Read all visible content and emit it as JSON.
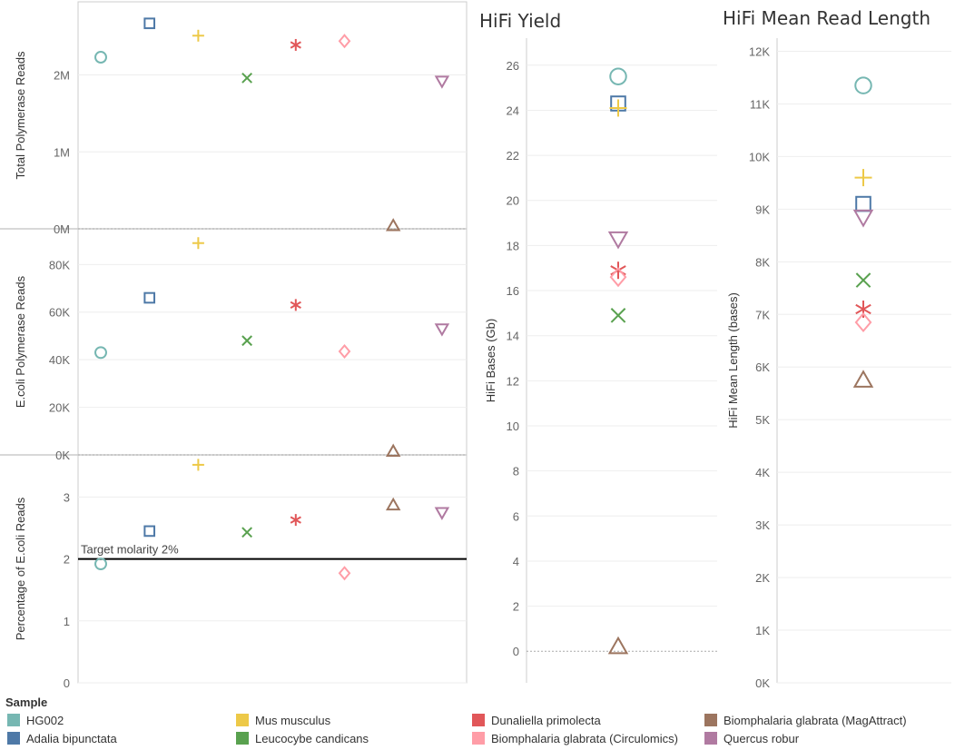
{
  "chart_data": [
    {
      "type": "scatter",
      "id": "total",
      "ylabel": "Total Polymerase Reads",
      "ylim": [
        0,
        2950000
      ],
      "ticks": [
        0,
        1000000,
        2000000
      ],
      "tick_labels": [
        "0M",
        "1M",
        "2M"
      ],
      "points": [
        {
          "sample": "HG002",
          "y": 2230000
        },
        {
          "sample": "Adalia bipunctata",
          "y": 2670000
        },
        {
          "sample": "Mus musculus",
          "y": 2510000
        },
        {
          "sample": "Leucocybe candicans",
          "y": 1960000
        },
        {
          "sample": "Dunaliella primolecta",
          "y": 2390000
        },
        {
          "sample": "Biomphalaria glabrata (Circulomics)",
          "y": 2440000
        },
        {
          "sample": "Biomphalaria glabrata (MagAttract)",
          "y": 40000
        },
        {
          "sample": "Quercus robur",
          "y": 1920000
        }
      ]
    },
    {
      "type": "scatter",
      "id": "ecoli",
      "ylabel": "E.coli Polymerase Reads",
      "ylim": [
        0,
        95000
      ],
      "ticks": [
        0,
        20000,
        40000,
        60000,
        80000
      ],
      "tick_labels": [
        "0K",
        "20K",
        "40K",
        "60K",
        "80K"
      ],
      "points": [
        {
          "sample": "HG002",
          "y": 43000
        },
        {
          "sample": "Adalia bipunctata",
          "y": 66000
        },
        {
          "sample": "Mus musculus",
          "y": 89000
        },
        {
          "sample": "Leucocybe candicans",
          "y": 48000
        },
        {
          "sample": "Dunaliella primolecta",
          "y": 63000
        },
        {
          "sample": "Biomphalaria glabrata (Circulomics)",
          "y": 43500
        },
        {
          "sample": "Biomphalaria glabrata (MagAttract)",
          "y": 1500
        },
        {
          "sample": "Quercus robur",
          "y": 53000
        }
      ]
    },
    {
      "type": "scatter",
      "id": "pct",
      "ylabel": "Percentage of E.coli Reads",
      "ylim": [
        0,
        3.68
      ],
      "ticks": [
        0,
        1,
        2,
        3
      ],
      "tick_labels": [
        "0",
        "1",
        "2",
        "3"
      ],
      "reference_line": {
        "value": 2,
        "label": "Target molarity 2%"
      },
      "points": [
        {
          "sample": "HG002",
          "y": 1.92
        },
        {
          "sample": "Adalia bipunctata",
          "y": 2.45
        },
        {
          "sample": "Mus musculus",
          "y": 3.52
        },
        {
          "sample": "Leucocybe candicans",
          "y": 2.43
        },
        {
          "sample": "Dunaliella primolecta",
          "y": 2.63
        },
        {
          "sample": "Biomphalaria glabrata (Circulomics)",
          "y": 1.77
        },
        {
          "sample": "Biomphalaria glabrata (MagAttract)",
          "y": 2.87
        },
        {
          "sample": "Quercus robur",
          "y": 2.75
        }
      ]
    },
    {
      "type": "scatter",
      "id": "yield",
      "title": "HiFi Yield",
      "ylabel": "HiFi Bases (Gb)",
      "ylim": [
        -1.4,
        27.2
      ],
      "ticks": [
        0,
        2,
        4,
        6,
        8,
        10,
        12,
        14,
        16,
        18,
        20,
        22,
        24,
        26
      ],
      "tick_labels": [
        "0",
        "2",
        "4",
        "6",
        "8",
        "10",
        "12",
        "14",
        "16",
        "18",
        "20",
        "22",
        "24",
        "26"
      ],
      "points": [
        {
          "sample": "HG002",
          "y": 25.5
        },
        {
          "sample": "Adalia bipunctata",
          "y": 24.3
        },
        {
          "sample": "Mus musculus",
          "y": 24.1
        },
        {
          "sample": "Quercus robur",
          "y": 18.3
        },
        {
          "sample": "Dunaliella primolecta",
          "y": 16.9
        },
        {
          "sample": "Biomphalaria glabrata (Circulomics)",
          "y": 16.6
        },
        {
          "sample": "Leucocybe candicans",
          "y": 14.9
        },
        {
          "sample": "Biomphalaria glabrata (MagAttract)",
          "y": 0.2
        }
      ]
    },
    {
      "type": "scatter",
      "id": "length",
      "title": "HiFi Mean Read Length",
      "ylabel": "HiFi Mean Length (bases)",
      "ylim": [
        0,
        12250
      ],
      "ticks": [
        0,
        1000,
        2000,
        3000,
        4000,
        5000,
        6000,
        7000,
        8000,
        9000,
        10000,
        11000,
        12000
      ],
      "tick_labels": [
        "0K",
        "1K",
        "2K",
        "3K",
        "4K",
        "5K",
        "6K",
        "7K",
        "8K",
        "9K",
        "10K",
        "11K",
        "12K"
      ],
      "points": [
        {
          "sample": "HG002",
          "y": 11350
        },
        {
          "sample": "Mus musculus",
          "y": 9600
        },
        {
          "sample": "Adalia bipunctata",
          "y": 9100
        },
        {
          "sample": "Quercus robur",
          "y": 8850
        },
        {
          "sample": "Leucocybe candicans",
          "y": 7650
        },
        {
          "sample": "Dunaliella primolecta",
          "y": 7100
        },
        {
          "sample": "Biomphalaria glabrata (Circulomics)",
          "y": 6850
        },
        {
          "sample": "Biomphalaria glabrata (MagAttract)",
          "y": 5750
        }
      ]
    }
  ],
  "samples": [
    {
      "name": "HG002",
      "color": "#76b7b2",
      "shape": "circle"
    },
    {
      "name": "Adalia bipunctata",
      "color": "#4e79a7",
      "shape": "square"
    },
    {
      "name": "Mus musculus",
      "color": "#edc948",
      "shape": "plus"
    },
    {
      "name": "Leucocybe candicans",
      "color": "#59a14f",
      "shape": "cross"
    },
    {
      "name": "Dunaliella primolecta",
      "color": "#e15759",
      "shape": "asterisk"
    },
    {
      "name": "Biomphalaria glabrata (Circulomics)",
      "color": "#ff9da7",
      "shape": "diamond"
    },
    {
      "name": "Biomphalaria glabrata (MagAttract)",
      "color": "#9c755f",
      "shape": "triangle-up"
    },
    {
      "name": "Quercus robur",
      "color": "#b07aa1",
      "shape": "triangle-down"
    }
  ],
  "legend": {
    "title": "Sample",
    "order": [
      "HG002",
      "Mus musculus",
      "Dunaliella primolecta",
      "Biomphalaria glabrata (MagAttract)",
      "Adalia bipunctata",
      "Leucocybe candicans",
      "Biomphalaria glabrata (Circulomics)",
      "Quercus robur"
    ]
  },
  "colors": {
    "gridline": "#eeeeee",
    "frame": "#cccccc",
    "zero_line": "#aaaaaa",
    "reference": "#000000"
  }
}
